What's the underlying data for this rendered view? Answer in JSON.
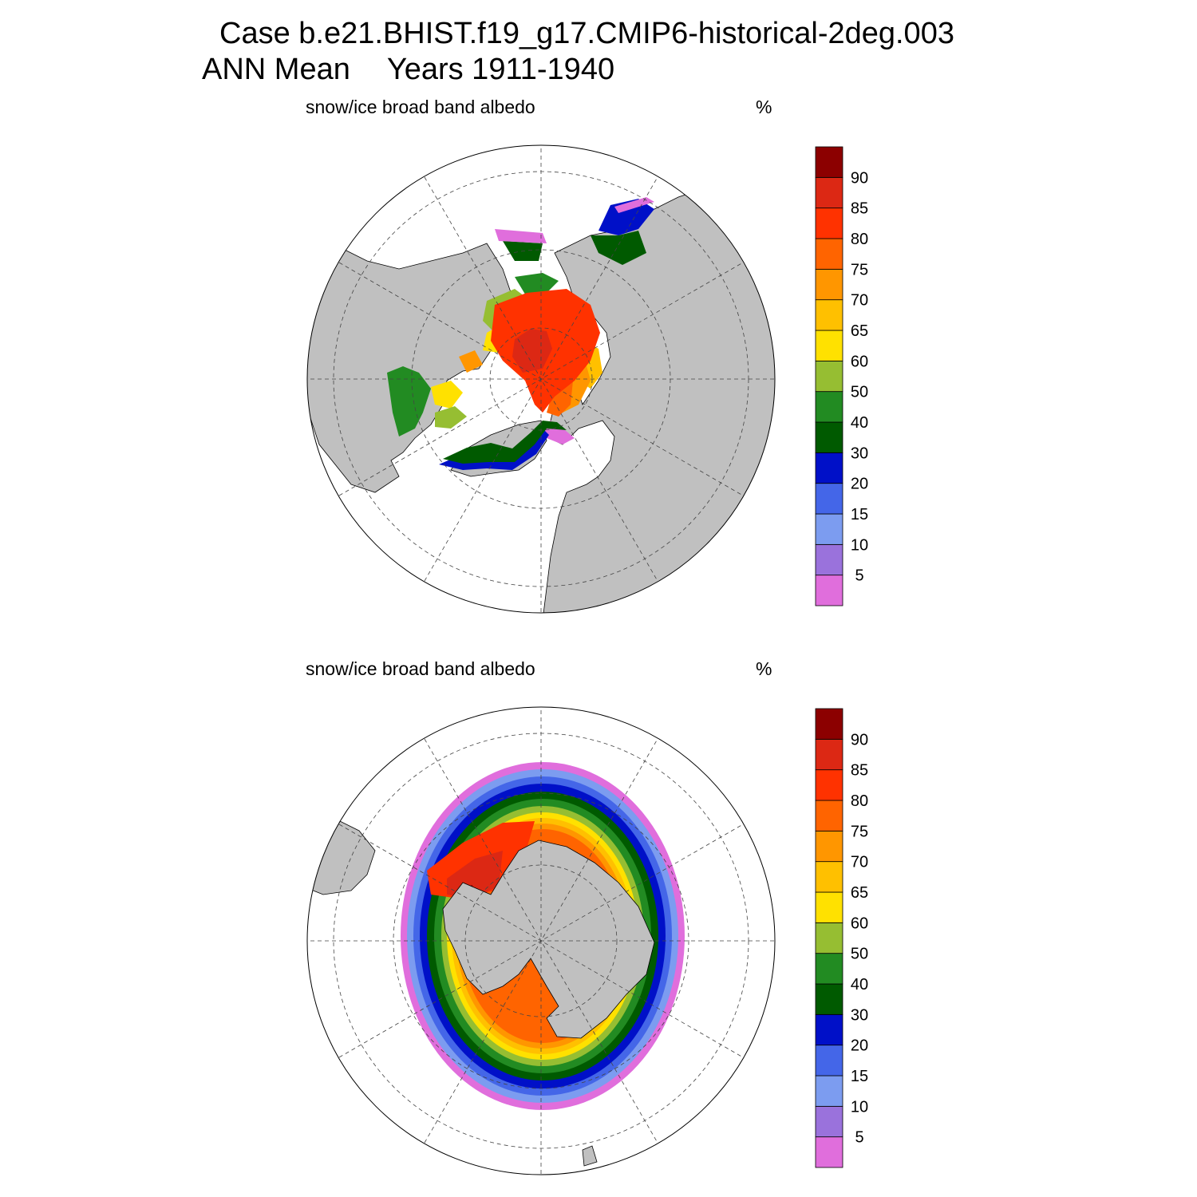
{
  "header": {
    "case_title": "Case b.e21.BHIST.f19_g17.CMIP6-historical-2deg.003",
    "period_label": "ANN Mean",
    "years_label": "Years 1911-1940"
  },
  "panels": [
    {
      "id": "north",
      "hemisphere": "Northern Hemisphere polar projection",
      "variable": "snow/ice broad band albedo",
      "units": "%"
    },
    {
      "id": "south",
      "hemisphere": "Southern Hemisphere polar projection",
      "variable": "snow/ice broad band albedo",
      "units": "%"
    }
  ],
  "colorbar": {
    "labels": [
      "5",
      "10",
      "15",
      "20",
      "30",
      "40",
      "50",
      "60",
      "65",
      "70",
      "75",
      "80",
      "85",
      "90"
    ],
    "colors": [
      "#e06edc",
      "#9a72dc",
      "#7c9cf0",
      "#4466e8",
      "#0010c8",
      "#005a00",
      "#228b22",
      "#96be32",
      "#ffe100",
      "#ffc000",
      "#ff9600",
      "#ff6400",
      "#ff3200",
      "#dc2814",
      "#8c0000"
    ]
  },
  "map_colors": {
    "land": "#c0c0c0",
    "ocean": "#ffffff",
    "grid": "#444444"
  }
}
